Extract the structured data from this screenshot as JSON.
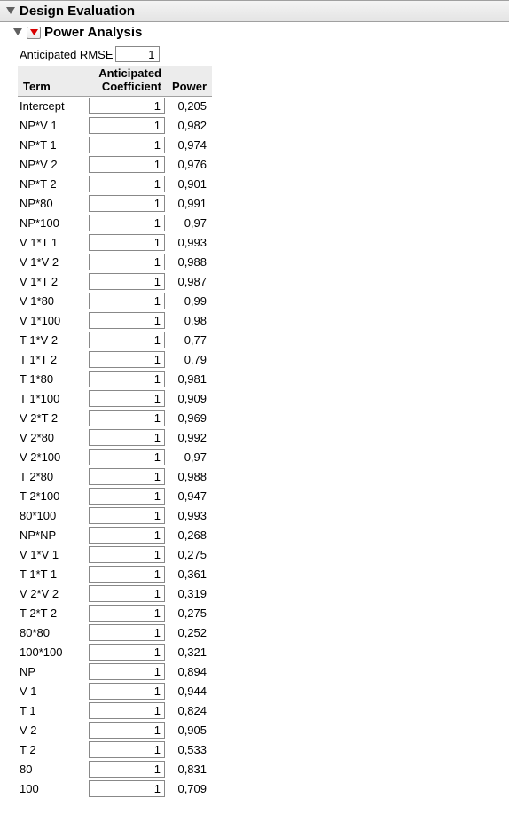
{
  "panel": {
    "main_title": "Design Evaluation",
    "sub_title": "Power Analysis"
  },
  "rmse": {
    "label": "Anticipated RMSE",
    "value": "1"
  },
  "table": {
    "headers": {
      "term": "Term",
      "coef_line1": "Anticipated",
      "coef_line2": "Coefficient",
      "power": "Power"
    },
    "rows": [
      {
        "term": "Intercept",
        "coef": "1",
        "power": "0,205"
      },
      {
        "term": "NP*V 1",
        "coef": "1",
        "power": "0,982"
      },
      {
        "term": "NP*T 1",
        "coef": "1",
        "power": "0,974"
      },
      {
        "term": "NP*V 2",
        "coef": "1",
        "power": "0,976"
      },
      {
        "term": "NP*T 2",
        "coef": "1",
        "power": "0,901"
      },
      {
        "term": "NP*80",
        "coef": "1",
        "power": "0,991"
      },
      {
        "term": "NP*100",
        "coef": "1",
        "power": "0,97"
      },
      {
        "term": "V 1*T 1",
        "coef": "1",
        "power": "0,993"
      },
      {
        "term": "V 1*V 2",
        "coef": "1",
        "power": "0,988"
      },
      {
        "term": "V 1*T 2",
        "coef": "1",
        "power": "0,987"
      },
      {
        "term": "V 1*80",
        "coef": "1",
        "power": "0,99"
      },
      {
        "term": "V 1*100",
        "coef": "1",
        "power": "0,98"
      },
      {
        "term": "T 1*V 2",
        "coef": "1",
        "power": "0,77"
      },
      {
        "term": "T 1*T 2",
        "coef": "1",
        "power": "0,79"
      },
      {
        "term": "T 1*80",
        "coef": "1",
        "power": "0,981"
      },
      {
        "term": "T 1*100",
        "coef": "1",
        "power": "0,909"
      },
      {
        "term": "V 2*T 2",
        "coef": "1",
        "power": "0,969"
      },
      {
        "term": "V 2*80",
        "coef": "1",
        "power": "0,992"
      },
      {
        "term": "V 2*100",
        "coef": "1",
        "power": "0,97"
      },
      {
        "term": "T 2*80",
        "coef": "1",
        "power": "0,988"
      },
      {
        "term": "T 2*100",
        "coef": "1",
        "power": "0,947"
      },
      {
        "term": "80*100",
        "coef": "1",
        "power": "0,993"
      },
      {
        "term": "NP*NP",
        "coef": "1",
        "power": "0,268"
      },
      {
        "term": "V 1*V 1",
        "coef": "1",
        "power": "0,275"
      },
      {
        "term": "T 1*T 1",
        "coef": "1",
        "power": "0,361"
      },
      {
        "term": "V 2*V 2",
        "coef": "1",
        "power": "0,319"
      },
      {
        "term": "T 2*T 2",
        "coef": "1",
        "power": "0,275"
      },
      {
        "term": "80*80",
        "coef": "1",
        "power": "0,252"
      },
      {
        "term": "100*100",
        "coef": "1",
        "power": "0,321"
      },
      {
        "term": "NP",
        "coef": "1",
        "power": "0,894"
      },
      {
        "term": "V 1",
        "coef": "1",
        "power": "0,944"
      },
      {
        "term": "T 1",
        "coef": "1",
        "power": "0,824"
      },
      {
        "term": "V 2",
        "coef": "1",
        "power": "0,905"
      },
      {
        "term": "T 2",
        "coef": "1",
        "power": "0,533"
      },
      {
        "term": "80",
        "coef": "1",
        "power": "0,831"
      },
      {
        "term": "100",
        "coef": "1",
        "power": "0,709"
      }
    ]
  },
  "colors": {
    "header_bg": "#ececec",
    "border": "#a0a0a0",
    "triangle": "#d80000",
    "disclosure": "#606060"
  }
}
